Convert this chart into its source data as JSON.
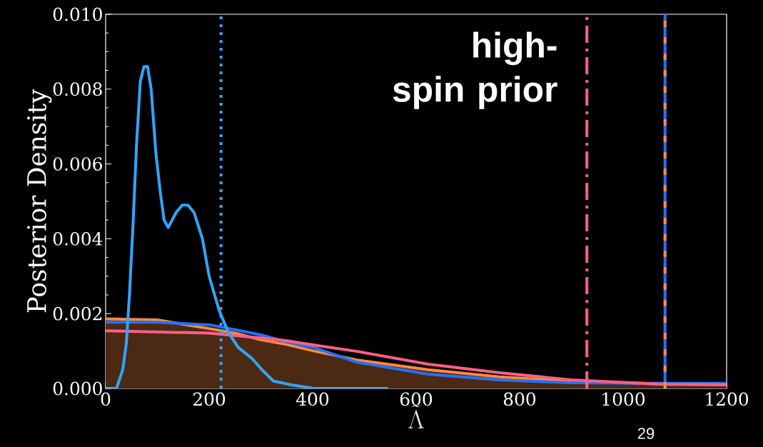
{
  "chart_data": {
    "type": "line",
    "xlabel": "\\tilde{\\Lambda}",
    "ylabel": "Posterior Density",
    "xlim": [
      0,
      1200
    ],
    "ylim": [
      0,
      0.01
    ],
    "xticks": [
      0,
      200,
      400,
      600,
      800,
      1000,
      1200
    ],
    "yticks": [
      {
        "value": 0,
        "label": "0.000"
      },
      {
        "value": 0.002,
        "label": "0.002"
      },
      {
        "value": 0.004,
        "label": "0.004"
      },
      {
        "value": 0.006,
        "label": "0.006"
      },
      {
        "value": 0.008,
        "label": "0.008"
      },
      {
        "value": 0.01,
        "label": "0.010"
      }
    ],
    "grid": false,
    "marker": "none",
    "line_style": "solid",
    "annotations": [
      "high-spin prior",
      "29"
    ],
    "series": [
      {
        "type": "area",
        "color": "#ff8a3d",
        "x": [
          0,
          100,
          200,
          250,
          300,
          348,
          403,
          486,
          623,
          761,
          899,
          1050,
          1200
        ],
        "values": [
          0.00186,
          0.00183,
          0.0016,
          0.00148,
          0.0013,
          0.00118,
          0.001,
          0.00076,
          0.0005,
          0.00031,
          0.00019,
          0.00013,
          0.0001
        ]
      },
      {
        "color": "#2272ff",
        "x": [
          0,
          100,
          200,
          250,
          300,
          348,
          403,
          486,
          623,
          761,
          899,
          1050,
          1200
        ],
        "values": [
          0.00177,
          0.00177,
          0.0017,
          0.00157,
          0.00143,
          0.00125,
          0.00109,
          0.0007,
          0.00038,
          0.00023,
          0.00015,
          0.00014,
          0.00014
        ]
      },
      {
        "color": "#ff5f87",
        "x": [
          0,
          200,
          300,
          348,
          403,
          486,
          623,
          761,
          899,
          1080,
          1200
        ],
        "values": [
          0.00154,
          0.00148,
          0.00135,
          0.00128,
          0.00116,
          0.00099,
          0.00065,
          0.00042,
          0.00023,
          0.00011,
          0.0001
        ]
      },
      {
        "color": "#2ea6ff",
        "x": [
          0,
          21,
          33,
          40,
          46,
          53,
          60,
          67,
          74,
          81,
          88,
          97,
          106,
          113,
          121,
          136,
          148,
          159,
          171,
          187,
          200,
          219,
          237,
          256,
          283,
          302,
          324,
          357,
          403,
          546
        ],
        "values": [
          0,
          0,
          0.0005,
          0.0012,
          0.0025,
          0.0044,
          0.0066,
          0.0082,
          0.0086,
          0.0086,
          0.008,
          0.0063,
          0.0052,
          0.0045,
          0.0043,
          0.0047,
          0.0049,
          0.0049,
          0.0047,
          0.004,
          0.003,
          0.0021,
          0.0015,
          0.0011,
          0.0008,
          0.0005,
          0.0002,
          0.0001,
          0,
          0
        ]
      }
    ],
    "ref_lines": [
      {
        "axis": "x",
        "value": 223,
        "color": "#2ea6ff",
        "line_style": "dotted"
      },
      {
        "axis": "x",
        "value": 930,
        "color": "#ff5f87",
        "line_style": "dashdot"
      },
      {
        "axis": "x",
        "value": 1081,
        "color": "#2272ff",
        "line_style": "solid"
      },
      {
        "axis": "x",
        "value": 1081,
        "color": "#f88c44",
        "line_style": "dashed"
      }
    ]
  }
}
